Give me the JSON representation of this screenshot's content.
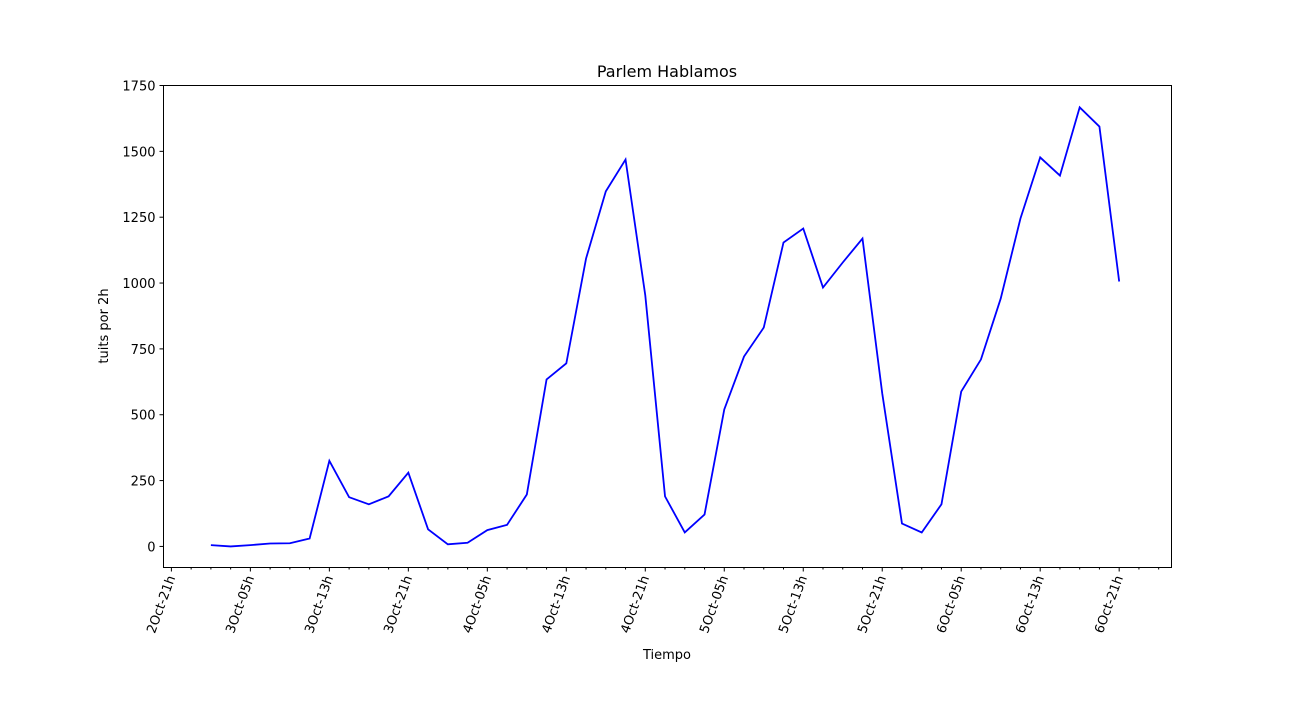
{
  "chart_data": {
    "type": "line",
    "title": "Parlem Hablamos",
    "xlabel": "Tiempo",
    "ylabel": "tuits por 2h",
    "x": [
      4,
      6,
      8,
      10,
      12,
      14,
      16,
      18,
      20,
      22,
      24,
      26,
      28,
      30,
      32,
      34,
      36,
      38,
      40,
      42,
      44,
      46,
      48,
      50,
      52,
      54,
      56,
      58,
      60,
      62,
      64,
      66,
      68,
      70,
      72,
      74,
      76,
      78,
      80,
      82,
      84,
      86,
      88,
      90,
      92,
      94,
      96
    ],
    "series": [
      {
        "name": "tuits",
        "color": "#0000ff",
        "values": [
          5,
          0,
          5,
          11,
          12,
          30,
          325,
          187,
          160,
          190,
          280,
          65,
          8,
          14,
          62,
          82,
          197,
          634,
          695,
          1093,
          1348,
          1469,
          953,
          190,
          53,
          121,
          520,
          721,
          831,
          1154,
          1207,
          983,
          1078,
          1169,
          581,
          87,
          53,
          160,
          588,
          710,
          941,
          1245,
          1477,
          1408,
          1667,
          1594,
          1006
        ]
      }
    ],
    "xlim": [
      -0.8,
      101.3
    ],
    "xticks": [
      {
        "value": 0,
        "label": "2Oct-21h"
      },
      {
        "value": 8,
        "label": "3Oct-05h"
      },
      {
        "value": 16,
        "label": "3Oct-13h"
      },
      {
        "value": 24,
        "label": "3Oct-21h"
      },
      {
        "value": 32,
        "label": "4Oct-05h"
      },
      {
        "value": 40,
        "label": "4Oct-13h"
      },
      {
        "value": 48,
        "label": "4Oct-21h"
      },
      {
        "value": 56,
        "label": "5Oct-05h"
      },
      {
        "value": 64,
        "label": "5Oct-13h"
      },
      {
        "value": 72,
        "label": "5Oct-21h"
      },
      {
        "value": 80,
        "label": "6Oct-05h"
      },
      {
        "value": 88,
        "label": "6Oct-13h"
      },
      {
        "value": 96,
        "label": "6Oct-21h"
      }
    ],
    "xminorticks": [
      2,
      4,
      6,
      10,
      12,
      14,
      18,
      20,
      22,
      26,
      28,
      30,
      34,
      36,
      38,
      42,
      44,
      46,
      50,
      52,
      54,
      58,
      60,
      62,
      66,
      68,
      70,
      74,
      76,
      78,
      82,
      84,
      86,
      90,
      92,
      94,
      98,
      100
    ],
    "ylim": [
      -80,
      1750
    ],
    "yticks": [
      0,
      250,
      500,
      750,
      1000,
      1250,
      1500,
      1750
    ]
  }
}
